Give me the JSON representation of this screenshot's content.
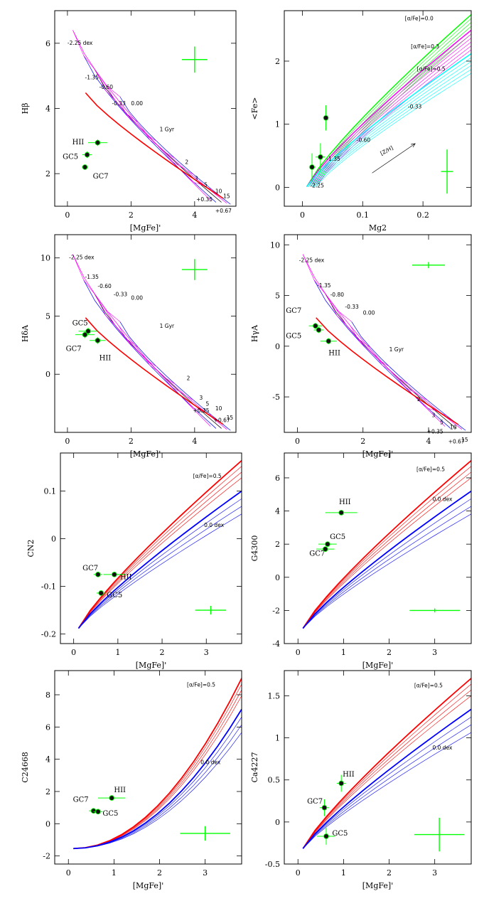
{
  "chart_data": [
    {
      "id": "hbeta",
      "type": "line",
      "xlabel": "[MgFe]'",
      "ylabel": "Hβ",
      "xlim": [
        -0.4,
        5.3
      ],
      "ylim": [
        1.0,
        7.0
      ],
      "xticks": [
        0,
        2,
        4
      ],
      "yticks": [
        2,
        4,
        6
      ],
      "annotations": [
        {
          "text": "-2.25 dex",
          "x": 0.0,
          "y": 5.95
        },
        {
          "text": "-1.35",
          "x": 0.55,
          "y": 4.9
        },
        {
          "text": "-0.60",
          "x": 1.0,
          "y": 4.6
        },
        {
          "text": "-0.33",
          "x": 1.4,
          "y": 4.1
        },
        {
          "text": "0.00",
          "x": 2.0,
          "y": 4.1
        },
        {
          "text": "1 Gyr",
          "x": 2.9,
          "y": 3.3
        },
        {
          "text": "2",
          "x": 3.7,
          "y": 2.3
        },
        {
          "text": "3",
          "x": 4.0,
          "y": 1.8
        },
        {
          "text": "5",
          "x": 4.3,
          "y": 1.6
        },
        {
          "text": "10",
          "x": 4.65,
          "y": 1.4
        },
        {
          "text": "+0.35",
          "x": 4.05,
          "y": 1.15
        },
        {
          "text": "15",
          "x": 4.9,
          "y": 1.25
        },
        {
          "text": "+0.67",
          "x": 4.65,
          "y": 0.8
        }
      ],
      "gc_labels": [
        {
          "text": "HII",
          "x": 0.15,
          "y": 2.9
        },
        {
          "text": "GC5",
          "x": -0.15,
          "y": 2.45
        },
        {
          "text": "GC7",
          "x": 0.8,
          "y": 1.85
        }
      ],
      "points": [
        {
          "name": "HII",
          "x": 0.95,
          "y": 2.95,
          "xerr": 0.3,
          "yerr": 0.1
        },
        {
          "name": "GC5",
          "x": 0.62,
          "y": 2.58,
          "xerr": 0.15,
          "yerr": 0.1
        },
        {
          "name": "GC7",
          "x": 0.55,
          "y": 2.2,
          "xerr": 0.1,
          "yerr": 0.08
        }
      ],
      "error_bar": {
        "x": 4.0,
        "y": 5.5,
        "xerr": 0.4,
        "yerr": 0.4
      }
    },
    {
      "id": "fe_mg2",
      "type": "line",
      "xlabel": "Mg2",
      "ylabel": "<Fe>",
      "xlim": [
        -0.03,
        0.28
      ],
      "ylim": [
        -0.3,
        2.8
      ],
      "xticks": [
        0,
        0.1,
        0.2
      ],
      "yticks": [
        0,
        1,
        2
      ],
      "series_labels": [
        {
          "text": "[α/Fe]=0.0",
          "x": 0.17,
          "y": 2.65
        },
        {
          "text": "[α/Fe]=0.3",
          "x": 0.18,
          "y": 2.2
        },
        {
          "text": "[α/Fe]=0.5",
          "x": 0.19,
          "y": 1.85
        }
      ],
      "annotations": [
        {
          "text": "-0.33",
          "x": 0.175,
          "y": 1.25
        },
        {
          "text": "-0.60",
          "x": 0.09,
          "y": 0.72
        },
        {
          "text": "-1.35",
          "x": 0.04,
          "y": 0.42
        },
        {
          "text": "-2.25",
          "x": 0.013,
          "y": 0.0
        }
      ],
      "arrow_label": "[Z/H]",
      "points": [
        {
          "x": 0.016,
          "y": 0.32,
          "xerr": 0.005,
          "yerr": 0.22
        },
        {
          "x": 0.03,
          "y": 0.48,
          "xerr": 0.008,
          "yerr": 0.22
        },
        {
          "x": 0.039,
          "y": 1.1,
          "xerr": 0.003,
          "yerr": 0.2
        }
      ],
      "error_bar": {
        "x": 0.24,
        "y": 0.25,
        "xerr": 0.01,
        "yerr": 0.35
      }
    },
    {
      "id": "hdelta",
      "type": "line",
      "xlabel": "[MgFe]'",
      "ylabel": "HδA",
      "xlim": [
        -0.4,
        5.3
      ],
      "ylim": [
        -5.0,
        12.0
      ],
      "xticks": [
        0,
        2,
        4
      ],
      "yticks": [
        0,
        5,
        10
      ],
      "annotations": [
        {
          "text": "-2.25 dex",
          "x": 0.05,
          "y": 9.9
        },
        {
          "text": "-1.35",
          "x": 0.55,
          "y": 8.2
        },
        {
          "text": "-0.60",
          "x": 0.95,
          "y": 7.4
        },
        {
          "text": "-0.33",
          "x": 1.45,
          "y": 6.7
        },
        {
          "text": "0.00",
          "x": 2.0,
          "y": 6.4
        },
        {
          "text": "1 Gyr",
          "x": 2.9,
          "y": 4.0
        },
        {
          "text": "2",
          "x": 3.75,
          "y": -0.5
        },
        {
          "text": "3",
          "x": 4.15,
          "y": -2.2
        },
        {
          "text": "5",
          "x": 4.35,
          "y": -2.7
        },
        {
          "text": "10",
          "x": 4.65,
          "y": -3.1
        },
        {
          "text": "+0.35",
          "x": 3.95,
          "y": -3.3
        },
        {
          "text": "+0.67",
          "x": 4.6,
          "y": -4.1
        },
        {
          "text": "15",
          "x": 5.0,
          "y": -3.9
        }
      ],
      "gc_labels": [
        {
          "text": "GC5",
          "x": 0.15,
          "y": 4.2
        },
        {
          "text": "GC7",
          "x": -0.05,
          "y": 2.0
        },
        {
          "text": "HII",
          "x": 1.0,
          "y": 1.2
        }
      ],
      "points": [
        {
          "name": "GC5",
          "x": 0.65,
          "y": 3.7,
          "xerr": 0.3,
          "yerr": 0.3
        },
        {
          "name": "GC7",
          "x": 0.55,
          "y": 3.4,
          "xerr": 0.3,
          "yerr": 0.3
        },
        {
          "name": "HII",
          "x": 0.95,
          "y": 2.9,
          "xerr": 0.25,
          "yerr": 0.3
        }
      ],
      "error_bar": {
        "x": 4.0,
        "y": 9.0,
        "xerr": 0.4,
        "yerr": 0.9
      }
    },
    {
      "id": "hgamma",
      "type": "line",
      "xlabel": "[MgFe]'",
      "ylabel": "HγA",
      "xlim": [
        -0.4,
        5.3
      ],
      "ylim": [
        -8.5,
        11.0
      ],
      "xticks": [
        0,
        2,
        4
      ],
      "yticks": [
        -5,
        0,
        5,
        10
      ],
      "annotations": [
        {
          "text": "-2.25 dex",
          "x": 0.05,
          "y": 8.3
        },
        {
          "text": "-1.35",
          "x": 0.6,
          "y": 5.8
        },
        {
          "text": "-0.80",
          "x": 1.0,
          "y": 4.9
        },
        {
          "text": "-0.33",
          "x": 1.45,
          "y": 3.7
        },
        {
          "text": "0.00",
          "x": 2.0,
          "y": 3.1
        },
        {
          "text": "1 Gyr",
          "x": 2.8,
          "y": -0.5
        },
        {
          "text": "2",
          "x": 3.65,
          "y": -5.4
        },
        {
          "text": "3",
          "x": 4.1,
          "y": -7.0
        },
        {
          "text": "5",
          "x": 4.35,
          "y": -7.7
        },
        {
          "text": "10",
          "x": 4.65,
          "y": -8.2
        },
        {
          "text": "+0.35",
          "x": 3.95,
          "y": -8.6
        },
        {
          "text": "+0.67",
          "x": 4.6,
          "y": -9.6
        },
        {
          "text": "15",
          "x": 5.0,
          "y": -9.4
        }
      ],
      "gc_labels": [
        {
          "text": "GC7",
          "x": -0.35,
          "y": 3.3
        },
        {
          "text": "GC5",
          "x": -0.35,
          "y": 0.8
        },
        {
          "text": "HII",
          "x": 0.95,
          "y": -0.9
        }
      ],
      "points": [
        {
          "name": "GC7",
          "x": 0.55,
          "y": 2.0,
          "xerr": 0.2,
          "yerr": 0.3
        },
        {
          "name": "GC5",
          "x": 0.65,
          "y": 1.6,
          "xerr": 0.15,
          "yerr": 0.3
        },
        {
          "name": "HII",
          "x": 0.95,
          "y": 0.5,
          "xerr": 0.25,
          "yerr": 0.3
        }
      ],
      "error_bar": {
        "x": 4.0,
        "y": 8.0,
        "xerr": 0.5,
        "yerr": 0.3
      }
    },
    {
      "id": "cn2",
      "type": "line",
      "xlabel": "[MgFe]'",
      "ylabel": "CN2",
      "xlim": [
        -0.3,
        3.8
      ],
      "ylim": [
        -0.22,
        0.18
      ],
      "xticks": [
        0,
        1,
        2,
        3
      ],
      "yticks": [
        -0.2,
        -0.1,
        0,
        0.1
      ],
      "series_labels": [
        {
          "text": "[α/Fe]=0.5",
          "x": 2.7,
          "y": 0.128
        },
        {
          "text": "0.0 dex",
          "x": 2.95,
          "y": 0.025
        }
      ],
      "gc_labels": [
        {
          "text": "GC7",
          "x": 0.2,
          "y": -0.066
        },
        {
          "text": "HII",
          "x": 1.05,
          "y": -0.085
        },
        {
          "text": "GC5",
          "x": 0.75,
          "y": -0.123
        }
      ],
      "points": [
        {
          "name": "GC7",
          "x": 0.55,
          "y": -0.075,
          "xerr": 0.1,
          "yerr": 0.004
        },
        {
          "name": "HII",
          "x": 0.92,
          "y": -0.075,
          "xerr": 0.25,
          "yerr": 0.004
        },
        {
          "name": "GC5",
          "x": 0.62,
          "y": -0.114,
          "xerr": 0.1,
          "yerr": 0.004
        }
      ],
      "error_bar": {
        "x": 3.1,
        "y": -0.15,
        "xerr": 0.35,
        "yerr": 0.009
      }
    },
    {
      "id": "g4300",
      "type": "line",
      "xlabel": "[MgFe]'",
      "ylabel": "G4300",
      "xlim": [
        -0.3,
        3.8
      ],
      "ylim": [
        -4.0,
        7.5
      ],
      "xticks": [
        0,
        1,
        2,
        3
      ],
      "yticks": [
        -4,
        -2,
        0,
        2,
        4,
        6
      ],
      "series_labels": [
        {
          "text": "[α/Fe]=0.5",
          "x": 2.6,
          "y": 6.4
        },
        {
          "text": "0.0 dex",
          "x": 2.95,
          "y": 4.6
        }
      ],
      "gc_labels": [
        {
          "text": "HII",
          "x": 0.9,
          "y": 4.4
        },
        {
          "text": "GC5",
          "x": 0.7,
          "y": 2.3
        },
        {
          "text": "GC7",
          "x": 0.25,
          "y": 1.3
        }
      ],
      "points": [
        {
          "name": "HII",
          "x": 0.95,
          "y": 3.9,
          "xerr": 0.35,
          "yerr": 0.08
        },
        {
          "name": "GC5",
          "x": 0.65,
          "y": 2.0,
          "xerr": 0.2,
          "yerr": 0.08
        },
        {
          "name": "GC7",
          "x": 0.6,
          "y": 1.7,
          "xerr": 0.2,
          "yerr": 0.08
        }
      ],
      "error_bar": {
        "x": 3.0,
        "y": -2.0,
        "xerr": 0.55,
        "yerr": 0.12
      }
    },
    {
      "id": "c24668",
      "type": "line",
      "xlabel": "[MgFe]'",
      "ylabel": "C24668",
      "xlim": [
        -0.3,
        3.8
      ],
      "ylim": [
        -2.5,
        9.5
      ],
      "xticks": [
        0,
        1,
        2,
        3
      ],
      "yticks": [
        -2,
        0,
        2,
        4,
        6,
        8
      ],
      "series_labels": [
        {
          "text": "[α/Fe]=0.5",
          "x": 2.6,
          "y": 8.5
        },
        {
          "text": "0.0 dex",
          "x": 2.9,
          "y": 3.7
        }
      ],
      "gc_labels": [
        {
          "text": "GC7",
          "x": 0.1,
          "y": 1.35
        },
        {
          "text": "HII",
          "x": 1.0,
          "y": 1.95
        },
        {
          "text": "GC5",
          "x": 0.75,
          "y": 0.5
        }
      ],
      "points": [
        {
          "name": "HII",
          "x": 0.95,
          "y": 1.6,
          "xerr": 0.3,
          "yerr": 0.1
        },
        {
          "name": "GC7",
          "x": 0.55,
          "y": 0.8,
          "xerr": 0.1,
          "yerr": 0.1
        },
        {
          "name": "GC5",
          "x": 0.65,
          "y": 0.75,
          "xerr": 0.1,
          "yerr": 0.1
        }
      ],
      "error_bar": {
        "x": 3.0,
        "y": -0.6,
        "xerr": 0.55,
        "yerr": 0.45
      }
    },
    {
      "id": "ca4227",
      "type": "line",
      "xlabel": "[MgFe]'",
      "ylabel": "Ca4227",
      "xlim": [
        -0.3,
        3.8
      ],
      "ylim": [
        -0.5,
        1.8
      ],
      "xticks": [
        0,
        1,
        2,
        3
      ],
      "yticks": [
        -0.5,
        0,
        0.5,
        1,
        1.5
      ],
      "series_labels": [
        {
          "text": "[α/Fe]=0.5",
          "x": 2.55,
          "y": 1.6
        },
        {
          "text": "0.0 dex",
          "x": 2.95,
          "y": 0.86
        }
      ],
      "gc_labels": [
        {
          "text": "HII",
          "x": 0.98,
          "y": 0.54
        },
        {
          "text": "GC7",
          "x": 0.2,
          "y": 0.22
        },
        {
          "text": "GC5",
          "x": 0.75,
          "y": -0.16
        }
      ],
      "points": [
        {
          "name": "HII",
          "x": 0.95,
          "y": 0.46,
          "xerr": 0.1,
          "yerr": 0.1
        },
        {
          "name": "GC7",
          "x": 0.58,
          "y": 0.17,
          "xerr": 0.1,
          "yerr": 0.1
        },
        {
          "name": "GC5",
          "x": 0.62,
          "y": -0.17,
          "xerr": 0.2,
          "yerr": 0.1
        }
      ],
      "error_bar": {
        "x": 3.1,
        "y": -0.15,
        "xerr": 0.55,
        "yerr": 0.2
      }
    }
  ]
}
